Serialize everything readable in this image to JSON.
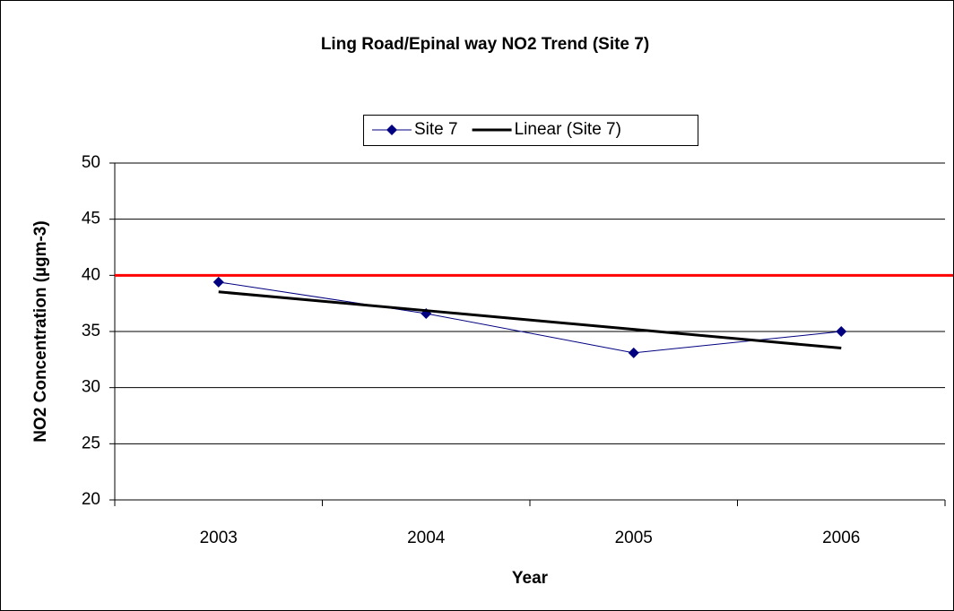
{
  "chart_data": {
    "type": "line",
    "title": "Ling Road/Epinal way NO2 Trend (Site 7)",
    "x_label": "Year",
    "y_label": "NO2 Concentration (µgm-3)",
    "categories": [
      "2003",
      "2004",
      "2005",
      "2006"
    ],
    "series": [
      {
        "name": "Site 7",
        "color": "#000080",
        "marker": "diamond",
        "width": 1,
        "values": [
          39.4,
          36.6,
          33.1,
          35.0
        ]
      },
      {
        "name": "Linear (Site 7)",
        "color": "#000000",
        "width": 3,
        "values": [
          38.53,
          36.86,
          35.19,
          33.52
        ]
      }
    ],
    "hline": {
      "value": 40,
      "color": "#ff0000"
    },
    "ylim": [
      20,
      50
    ],
    "yticks": [
      20,
      25,
      30,
      35,
      40,
      45,
      50
    ],
    "grid": true,
    "legend": "top"
  }
}
